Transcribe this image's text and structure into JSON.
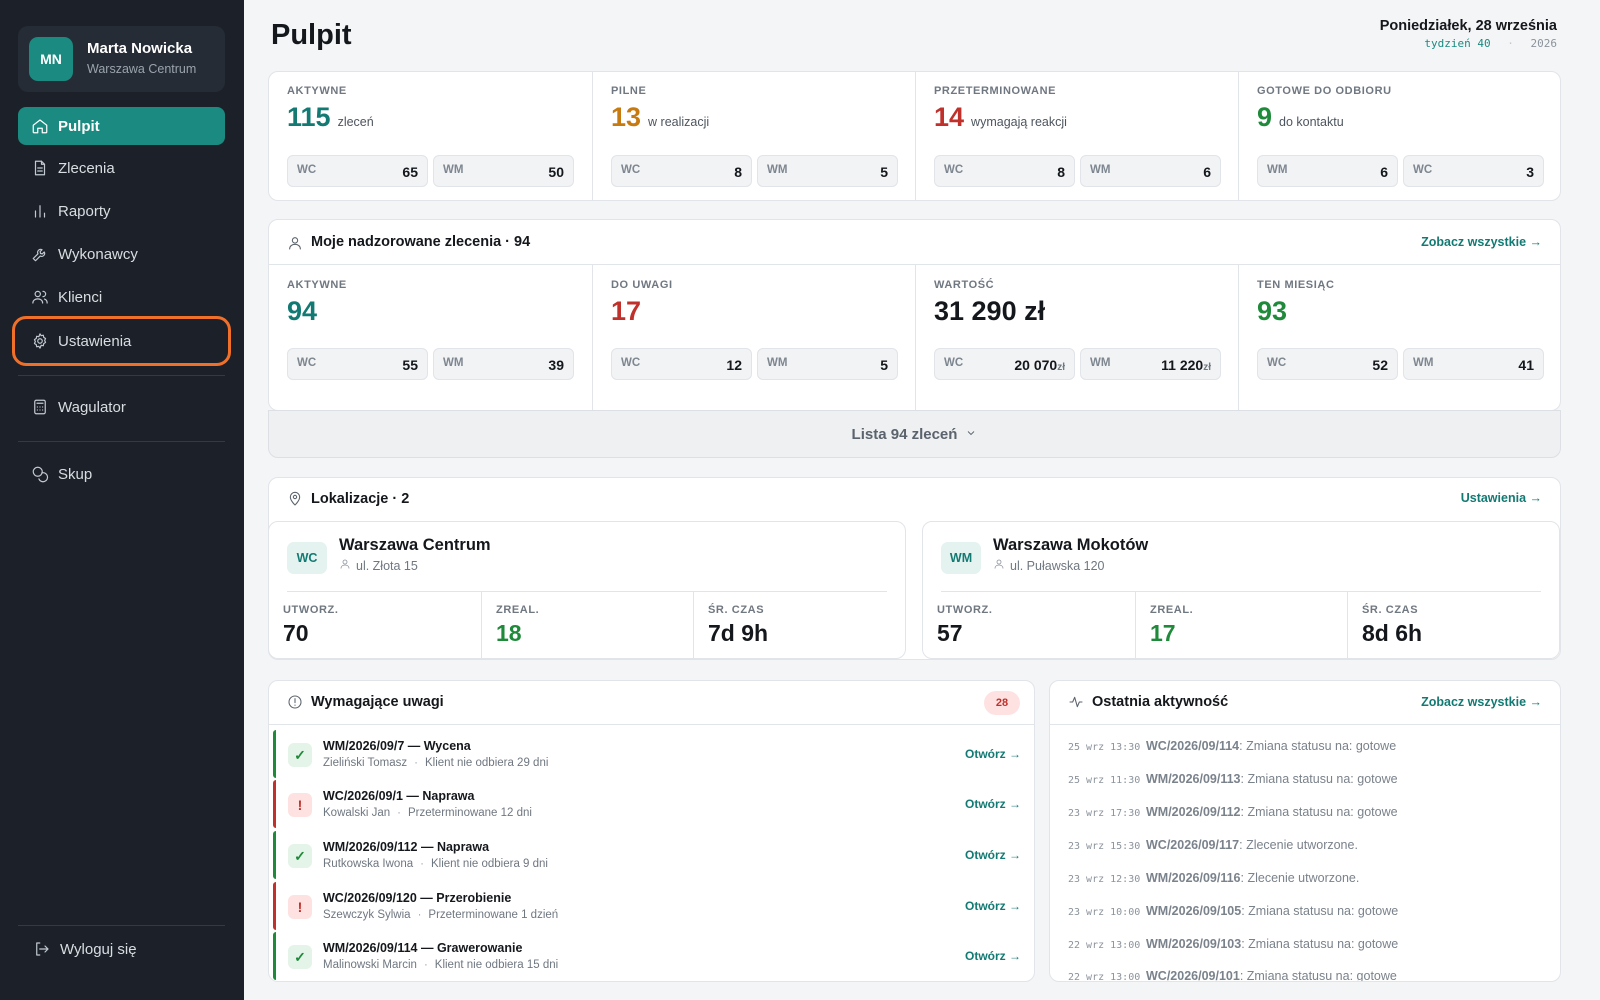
{
  "user": {
    "initials": "MN",
    "name": "Marta Nowicka",
    "location": "Warszawa Centrum"
  },
  "nav": {
    "items": [
      {
        "label": "Pulpit",
        "icon": "home-icon",
        "active": true
      },
      {
        "label": "Zlecenia",
        "icon": "document-icon"
      },
      {
        "label": "Raporty",
        "icon": "bar-chart-icon"
      },
      {
        "label": "Wykonawcy",
        "icon": "wrench-icon"
      },
      {
        "label": "Klienci",
        "icon": "users-icon"
      },
      {
        "label": "Ustawienia",
        "icon": "gear-icon",
        "focused": true
      },
      {
        "label": "Wagulator",
        "icon": "calculator-icon"
      },
      {
        "label": "Skup",
        "icon": "coins-icon"
      }
    ],
    "logout": "Wyloguj się"
  },
  "header": {
    "title": "Pulpit",
    "date": "Poniedziałek, 28 września",
    "week": "tydzień 40",
    "separator": "·",
    "year": "2026"
  },
  "overview": [
    {
      "label": "AKTYWNE",
      "value": "115",
      "unit": "zleceń",
      "color": "#137a73",
      "pills": [
        {
          "k": "WC",
          "v": "65"
        },
        {
          "k": "WM",
          "v": "50"
        }
      ]
    },
    {
      "label": "PILNE",
      "value": "13",
      "unit": "w realizacji",
      "color": "#c77a10",
      "pills": [
        {
          "k": "WC",
          "v": "8"
        },
        {
          "k": "WM",
          "v": "5"
        }
      ]
    },
    {
      "label": "PRZETERMINOWANE",
      "value": "14",
      "unit": "wymagają reakcji",
      "color": "#c0312b",
      "pills": [
        {
          "k": "WC",
          "v": "8"
        },
        {
          "k": "WM",
          "v": "6"
        }
      ]
    },
    {
      "label": "GOTOWE DO ODBIORU",
      "value": "9",
      "unit": "do kontaktu",
      "color": "#1f8a3a",
      "pills": [
        {
          "k": "WM",
          "v": "6"
        },
        {
          "k": "WC",
          "v": "3"
        }
      ]
    }
  ],
  "supervised": {
    "title": "Moje nadzorowane zlecenia · 94",
    "link": "Zobacz wszystkie →",
    "stats": [
      {
        "label": "AKTYWNE",
        "value": "94",
        "color": "#137a73",
        "pills": [
          {
            "k": "WC",
            "v": "55"
          },
          {
            "k": "WM",
            "v": "39"
          }
        ]
      },
      {
        "label": "DO UWAGI",
        "value": "17",
        "color": "#c0312b",
        "pills": [
          {
            "k": "WC",
            "v": "12"
          },
          {
            "k": "WM",
            "v": "5"
          }
        ]
      },
      {
        "label": "WARTOŚĆ",
        "value": "31 290 zł",
        "color": "#14171b",
        "pills": [
          {
            "k": "WC",
            "v": "20 070",
            "s": "zł"
          },
          {
            "k": "WM",
            "v": "11 220",
            "s": "zł"
          }
        ]
      },
      {
        "label": "TEN MIESIĄC",
        "value": "93",
        "color": "#1f8a3a",
        "pills": [
          {
            "k": "WC",
            "v": "52"
          },
          {
            "k": "WM",
            "v": "41"
          }
        ]
      }
    ],
    "list_toggle": "Lista 94 zleceń"
  },
  "locations": {
    "title": "Lokalizacje · 2",
    "link": "Ustawienia →",
    "items": [
      {
        "badge": "WC",
        "name": "Warszawa Centrum",
        "address": "ul. Złota 15",
        "stats": [
          {
            "label": "UTWORZ.",
            "value": "70",
            "color": "#14171b"
          },
          {
            "label": "ZREAL.",
            "value": "18",
            "color": "#1f8a3a"
          },
          {
            "label": "ŚR. CZAS",
            "value": "7d 9h",
            "color": "#14171b"
          }
        ]
      },
      {
        "badge": "WM",
        "name": "Warszawa Mokotów",
        "address": "ul. Puławska 120",
        "stats": [
          {
            "label": "UTWORZ.",
            "value": "57",
            "color": "#14171b"
          },
          {
            "label": "ZREAL.",
            "value": "17",
            "color": "#1f8a3a"
          },
          {
            "label": "ŚR. CZAS",
            "value": "8d 6h",
            "color": "#14171b"
          }
        ]
      }
    ]
  },
  "attention": {
    "title": "Wymagające uwagi",
    "count": "28",
    "open_label": "Otwórz →",
    "items": [
      {
        "status": "ok",
        "symbol": "✓",
        "title": "WM/2026/09/7 — Wycena",
        "person": "Zieliński Tomasz",
        "note": "Klient nie odbiera 29 dni"
      },
      {
        "status": "warn",
        "symbol": "!",
        "title": "WC/2026/09/1 — Naprawa",
        "person": "Kowalski Jan",
        "note": "Przeterminowane 12 dni"
      },
      {
        "status": "ok",
        "symbol": "✓",
        "title": "WM/2026/09/112 — Naprawa",
        "person": "Rutkowska Iwona",
        "note": "Klient nie odbiera 9 dni"
      },
      {
        "status": "warn",
        "symbol": "!",
        "title": "WC/2026/09/120 — Przerobienie",
        "person": "Szewczyk Sylwia",
        "note": "Przeterminowane 1 dzień"
      },
      {
        "status": "ok",
        "symbol": "✓",
        "title": "WM/2026/09/114 — Grawerowanie",
        "person": "Malinowski Marcin",
        "note": "Klient nie odbiera 15 dni"
      }
    ]
  },
  "activity": {
    "title": "Ostatnia aktywność",
    "link": "Zobacz wszystkie →",
    "items": [
      {
        "time": "25 wrz 13:30",
        "code": "WC/2026/09/114",
        "text": ": Zmiana statusu na: gotowe"
      },
      {
        "time": "25 wrz 11:30",
        "code": "WM/2026/09/113",
        "text": ": Zmiana statusu na: gotowe"
      },
      {
        "time": "23 wrz 17:30",
        "code": "WM/2026/09/112",
        "text": ": Zmiana statusu na: gotowe"
      },
      {
        "time": "23 wrz 15:30",
        "code": "WC/2026/09/117",
        "text": ": Zlecenie utworzone."
      },
      {
        "time": "23 wrz 12:30",
        "code": "WM/2026/09/116",
        "text": ": Zlecenie utworzone."
      },
      {
        "time": "23 wrz 10:00",
        "code": "WM/2026/09/105",
        "text": ": Zmiana statusu na: gotowe"
      },
      {
        "time": "22 wrz 13:00",
        "code": "WM/2026/09/103",
        "text": ": Zmiana statusu na: gotowe"
      },
      {
        "time": "22 wrz 13:00",
        "code": "WC/2026/09/101",
        "text": ": Zmiana statusu na: gotowe"
      }
    ]
  }
}
